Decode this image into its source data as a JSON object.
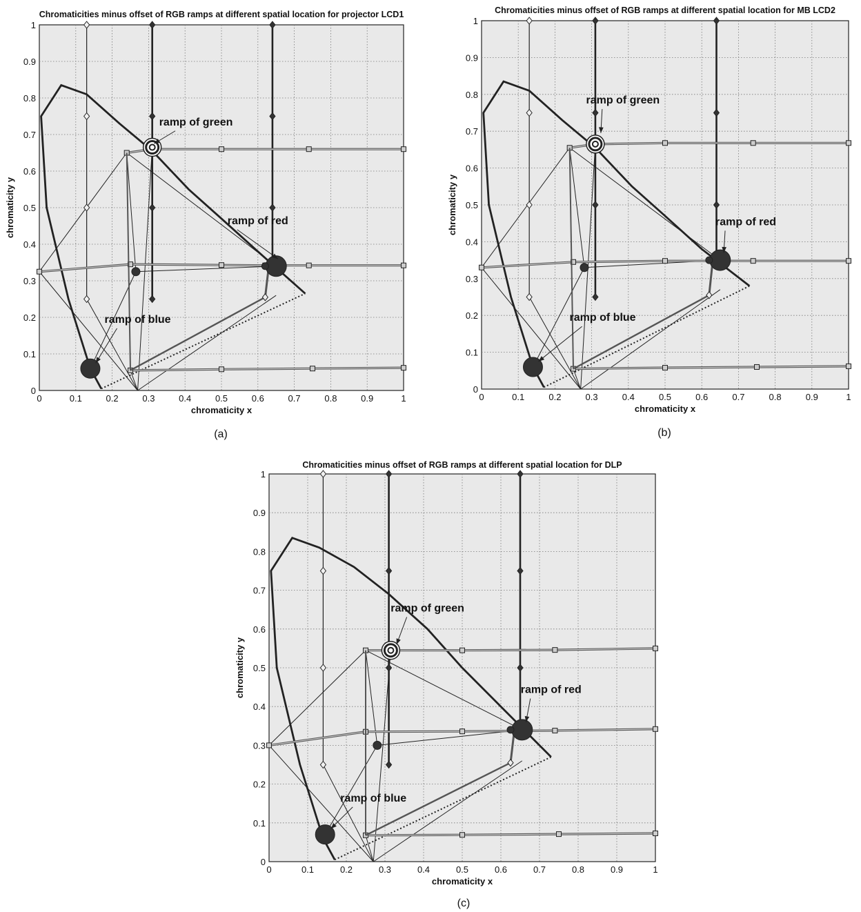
{
  "chart_data": [
    {
      "type": "line",
      "title": "Chromaticities minus offset of RGB ramps at different spatial location for projector LCD1",
      "xlabel": "chromaticity x",
      "ylabel": "chromaticity y",
      "caption": "(a)",
      "xlim": [
        0,
        1
      ],
      "ylim": [
        0,
        1
      ],
      "xticks": [
        "0",
        "0.1",
        "0.2",
        "0.3",
        "0.4",
        "0.5",
        "0.6",
        "0.7",
        "0.8",
        "0.9",
        "1"
      ],
      "yticks": [
        "0",
        "0.1",
        "0.2",
        "0.3",
        "0.4",
        "0.5",
        "0.6",
        "0.7",
        "0.8",
        "0.9",
        "1"
      ],
      "grid": true,
      "spectral_locus": [
        [
          0.17,
          0.005
        ],
        [
          0.14,
          0.06
        ],
        [
          0.08,
          0.25
        ],
        [
          0.02,
          0.5
        ],
        [
          0.005,
          0.75
        ],
        [
          0.06,
          0.835
        ],
        [
          0.13,
          0.81
        ],
        [
          0.22,
          0.73
        ],
        [
          0.31,
          0.655
        ],
        [
          0.41,
          0.55
        ],
        [
          0.5,
          0.47
        ],
        [
          0.6,
          0.38
        ],
        [
          0.73,
          0.265
        ]
      ],
      "red_blue_boundary": [
        [
          0.17,
          0.005
        ],
        [
          0.73,
          0.265
        ]
      ],
      "green_primary": [
        0.31,
        0.665
      ],
      "red_primary": [
        0.65,
        0.34
      ],
      "blue_primary": [
        0.14,
        0.06
      ],
      "white_point": [
        0.265,
        0.325
      ],
      "verticals": [
        {
          "x": 0.13,
          "points": [
            [
              0.13,
              1
            ],
            [
              0.13,
              0.75
            ],
            [
              0.13,
              0.5
            ],
            [
              0.13,
              0.25
            ]
          ]
        },
        {
          "x": 0.31,
          "points": [
            [
              0.31,
              1
            ],
            [
              0.31,
              0.75
            ],
            [
              0.31,
              0.5
            ],
            [
              0.31,
              0.25
            ]
          ]
        },
        {
          "x": 0.64,
          "points": [
            [
              0.64,
              1
            ],
            [
              0.64,
              0.75
            ],
            [
              0.64,
              0.5
            ],
            [
              0.64,
              0.34
            ]
          ]
        }
      ],
      "horizontals": [
        {
          "points": [
            [
              0.24,
              0.65
            ],
            [
              0.31,
              0.66
            ],
            [
              0.5,
              0.66
            ],
            [
              0.74,
              0.66
            ],
            [
              1,
              0.66
            ]
          ]
        },
        {
          "points": [
            [
              0.0,
              0.325
            ],
            [
              0.25,
              0.345
            ],
            [
              0.5,
              0.343
            ],
            [
              0.62,
              0.342
            ],
            [
              0.74,
              0.342
            ],
            [
              1,
              0.342
            ]
          ]
        },
        {
          "points": [
            [
              0.25,
              0.055
            ],
            [
              0.5,
              0.058
            ],
            [
              0.75,
              0.06
            ],
            [
              1,
              0.062
            ]
          ]
        }
      ],
      "dot_x": [
        0.265,
        0.075
      ],
      "annotations": [
        {
          "text": "ramp of green",
          "x": 0.43,
          "y": 0.725,
          "arrow_to": [
            0.315,
            0.675
          ]
        },
        {
          "text": "ramp of red",
          "x": 0.6,
          "y": 0.455,
          "arrow_to": [
            0.655,
            0.36
          ]
        },
        {
          "text": "ramp of blue",
          "x": 0.27,
          "y": 0.185,
          "arrow_to": [
            0.155,
            0.075
          ]
        }
      ]
    },
    {
      "type": "line",
      "title": "Chromaticities minus offset  of RGB ramps at different spatial location for MB LCD2",
      "xlabel": "chromaticity x",
      "ylabel": "chromaticity y",
      "caption": "(b)",
      "xlim": [
        0,
        1
      ],
      "ylim": [
        0,
        1
      ],
      "xticks": [
        "0",
        "0.1",
        "0.2",
        "0.3",
        "0.4",
        "0.5",
        "0.6",
        "0.7",
        "0.8",
        "0.9",
        "1"
      ],
      "yticks": [
        "0",
        "0.1",
        "0.2",
        "0.3",
        "0.4",
        "0.5",
        "0.6",
        "0.7",
        "0.8",
        "0.9",
        "1"
      ],
      "grid": true,
      "spectral_locus": [
        [
          0.17,
          0.005
        ],
        [
          0.14,
          0.06
        ],
        [
          0.08,
          0.25
        ],
        [
          0.02,
          0.5
        ],
        [
          0.005,
          0.75
        ],
        [
          0.06,
          0.835
        ],
        [
          0.13,
          0.81
        ],
        [
          0.22,
          0.73
        ],
        [
          0.31,
          0.655
        ],
        [
          0.41,
          0.55
        ],
        [
          0.5,
          0.47
        ],
        [
          0.6,
          0.38
        ],
        [
          0.73,
          0.28
        ]
      ],
      "red_blue_boundary": [
        [
          0.17,
          0.005
        ],
        [
          0.73,
          0.28
        ]
      ],
      "green_primary": [
        0.31,
        0.665
      ],
      "red_primary": [
        0.65,
        0.35
      ],
      "blue_primary": [
        0.14,
        0.06
      ],
      "white_point": [
        0.28,
        0.33
      ],
      "verticals": [
        {
          "x": 0.13,
          "points": [
            [
              0.13,
              1
            ],
            [
              0.13,
              0.75
            ],
            [
              0.13,
              0.5
            ],
            [
              0.13,
              0.25
            ]
          ]
        },
        {
          "x": 0.31,
          "points": [
            [
              0.31,
              1
            ],
            [
              0.31,
              0.75
            ],
            [
              0.31,
              0.5
            ],
            [
              0.31,
              0.25
            ]
          ]
        },
        {
          "x": 0.64,
          "points": [
            [
              0.64,
              1
            ],
            [
              0.64,
              0.75
            ],
            [
              0.64,
              0.5
            ],
            [
              0.64,
              0.35
            ]
          ]
        }
      ],
      "horizontals": [
        {
          "points": [
            [
              0.24,
              0.655
            ],
            [
              0.31,
              0.665
            ],
            [
              0.5,
              0.668
            ],
            [
              0.74,
              0.668
            ],
            [
              1,
              0.668
            ]
          ]
        },
        {
          "points": [
            [
              0.0,
              0.33
            ],
            [
              0.25,
              0.345
            ],
            [
              0.5,
              0.348
            ],
            [
              0.74,
              0.348
            ],
            [
              1,
              0.348
            ]
          ]
        },
        {
          "points": [
            [
              0.25,
              0.055
            ],
            [
              0.5,
              0.058
            ],
            [
              0.75,
              0.06
            ],
            [
              1,
              0.062
            ]
          ]
        }
      ],
      "dot_x": [
        0.28,
        0.075
      ],
      "annotations": [
        {
          "text": "ramp of green",
          "x": 0.385,
          "y": 0.775,
          "arrow_to": [
            0.325,
            0.695
          ]
        },
        {
          "text": "ramp of red",
          "x": 0.72,
          "y": 0.445,
          "arrow_to": [
            0.66,
            0.37
          ]
        },
        {
          "text": "ramp of blue",
          "x": 0.33,
          "y": 0.185,
          "arrow_to": [
            0.155,
            0.075
          ]
        }
      ]
    },
    {
      "type": "line",
      "title": "Chromaticities minus offset of RGB ramps at different spatial location for DLP",
      "xlabel": "chromaticity x",
      "ylabel": "chromaticity y",
      "caption": "(c)",
      "xlim": [
        0,
        1
      ],
      "ylim": [
        0,
        1
      ],
      "xticks": [
        "0",
        "0.1",
        "0.2",
        "0.3",
        "0.4",
        "0.5",
        "0.6",
        "0.7",
        "0.8",
        "0.9",
        "1"
      ],
      "yticks": [
        "0",
        "0.1",
        "0.2",
        "0.3",
        "0.4",
        "0.5",
        "0.6",
        "0.7",
        "0.8",
        "0.9",
        "1"
      ],
      "grid": true,
      "spectral_locus": [
        [
          0.17,
          0.005
        ],
        [
          0.14,
          0.06
        ],
        [
          0.08,
          0.25
        ],
        [
          0.02,
          0.5
        ],
        [
          0.005,
          0.75
        ],
        [
          0.06,
          0.835
        ],
        [
          0.13,
          0.81
        ],
        [
          0.22,
          0.76
        ],
        [
          0.31,
          0.69
        ],
        [
          0.41,
          0.6
        ],
        [
          0.5,
          0.5
        ],
        [
          0.6,
          0.4
        ],
        [
          0.73,
          0.27
        ]
      ],
      "red_blue_boundary": [
        [
          0.17,
          0.005
        ],
        [
          0.73,
          0.27
        ]
      ],
      "green_primary": [
        0.315,
        0.545
      ],
      "red_primary": [
        0.655,
        0.34
      ],
      "blue_primary": [
        0.145,
        0.07
      ],
      "white_point": [
        0.28,
        0.3
      ],
      "verticals": [
        {
          "x": 0.14,
          "points": [
            [
              0.14,
              1
            ],
            [
              0.14,
              0.75
            ],
            [
              0.14,
              0.5
            ],
            [
              0.14,
              0.25
            ]
          ]
        },
        {
          "x": 0.31,
          "points": [
            [
              0.31,
              1
            ],
            [
              0.31,
              0.75
            ],
            [
              0.31,
              0.5
            ],
            [
              0.31,
              0.25
            ]
          ]
        },
        {
          "x": 0.65,
          "points": [
            [
              0.65,
              1
            ],
            [
              0.65,
              0.75
            ],
            [
              0.65,
              0.5
            ],
            [
              0.65,
              0.34
            ]
          ]
        }
      ],
      "horizontals": [
        {
          "points": [
            [
              0.25,
              0.545
            ],
            [
              0.5,
              0.545
            ],
            [
              0.74,
              0.546
            ],
            [
              1,
              0.55
            ]
          ]
        },
        {
          "points": [
            [
              0.0,
              0.3
            ],
            [
              0.25,
              0.335
            ],
            [
              0.5,
              0.336
            ],
            [
              0.74,
              0.338
            ],
            [
              1,
              0.342
            ]
          ]
        },
        {
          "points": [
            [
              0.25,
              0.068
            ],
            [
              0.5,
              0.069
            ],
            [
              0.75,
              0.071
            ],
            [
              1,
              0.073
            ]
          ]
        }
      ],
      "dot_x": [
        0.28,
        0.075
      ],
      "annotations": [
        {
          "text": "ramp of green",
          "x": 0.41,
          "y": 0.645,
          "arrow_to": [
            0.33,
            0.56
          ]
        },
        {
          "text": "ramp of red",
          "x": 0.73,
          "y": 0.435,
          "arrow_to": [
            0.665,
            0.36
          ]
        },
        {
          "text": "ramp of blue",
          "x": 0.27,
          "y": 0.155,
          "arrow_to": [
            0.16,
            0.085
          ]
        }
      ]
    }
  ],
  "colors": {
    "background": "#ffffff",
    "plot_area": "#e9e9e9",
    "line": "#222222",
    "grid": "#777777"
  }
}
